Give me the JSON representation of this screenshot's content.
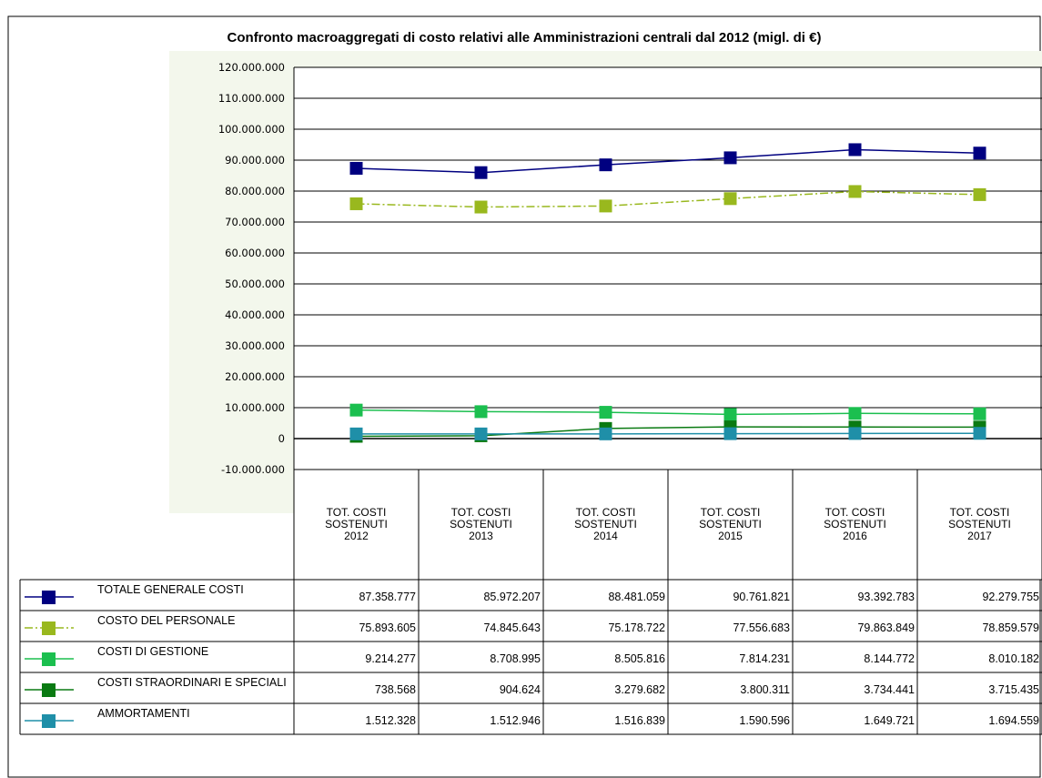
{
  "chart_data": {
    "type": "line",
    "title": "Confronto macroaggregati di costo relativi alle Amministrazioni centrali dal  2012 (migl. di €)",
    "categories": [
      [
        "TOT. COSTI",
        "SOSTENUTI",
        "2012"
      ],
      [
        "TOT. COSTI",
        "SOSTENUTI",
        "2013"
      ],
      [
        "TOT. COSTI",
        "SOSTENUTI",
        "2014"
      ],
      [
        "TOT. COSTI",
        "SOSTENUTI",
        "2015"
      ],
      [
        "TOT. COSTI",
        "SOSTENUTI",
        "2016"
      ],
      [
        "TOT. COSTI",
        "SOSTENUTI",
        "2017"
      ]
    ],
    "ylim": [
      -10000000,
      120000000
    ],
    "ytick_step": 10000000,
    "grid": true,
    "legend_position": "bottom data table",
    "series": [
      {
        "name": "TOTALE GENERALE COSTI",
        "color": "#000080",
        "line_style": "solid",
        "values": [
          87358777,
          85972207,
          88481059,
          90761821,
          93392783,
          92279755
        ],
        "labels": [
          "87.358.777",
          "85.972.207",
          "88.481.059",
          "90.761.821",
          "93.392.783",
          "92.279.755"
        ]
      },
      {
        "name": "COSTO DEL PERSONALE",
        "color": "#99B81E",
        "line_style": "dashdot",
        "values": [
          75893605,
          74845643,
          75178722,
          77556683,
          79863849,
          78859579
        ],
        "labels": [
          "75.893.605",
          "74.845.643",
          "75.178.722",
          "77.556.683",
          "79.863.849",
          "78.859.579"
        ]
      },
      {
        "name": "COSTI DI GESTIONE",
        "color": "#1BBF4F",
        "line_style": "solid",
        "values": [
          9214277,
          8708995,
          8505816,
          7814231,
          8144772,
          8010182
        ],
        "labels": [
          "9.214.277",
          "8.708.995",
          "8.505.816",
          "7.814.231",
          "8.144.772",
          "8.010.182"
        ]
      },
      {
        "name": "COSTI STRAORDINARI E SPECIALI",
        "color": "#0A7A12",
        "line_style": "solid",
        "values": [
          738568,
          904624,
          3279682,
          3800311,
          3734441,
          3715435
        ],
        "labels": [
          "738.568",
          "904.624",
          "3.279.682",
          "3.800.311",
          "3.734.441",
          "3.715.435"
        ]
      },
      {
        "name": "AMMORTAMENTI",
        "color": "#1F8FA8",
        "line_style": "solid",
        "values": [
          1512328,
          1512946,
          1516839,
          1590596,
          1649721,
          1694559
        ],
        "labels": [
          "1.512.328",
          "1.512.946",
          "1.516.839",
          "1.590.596",
          "1.649.721",
          "1.694.559"
        ]
      }
    ]
  }
}
